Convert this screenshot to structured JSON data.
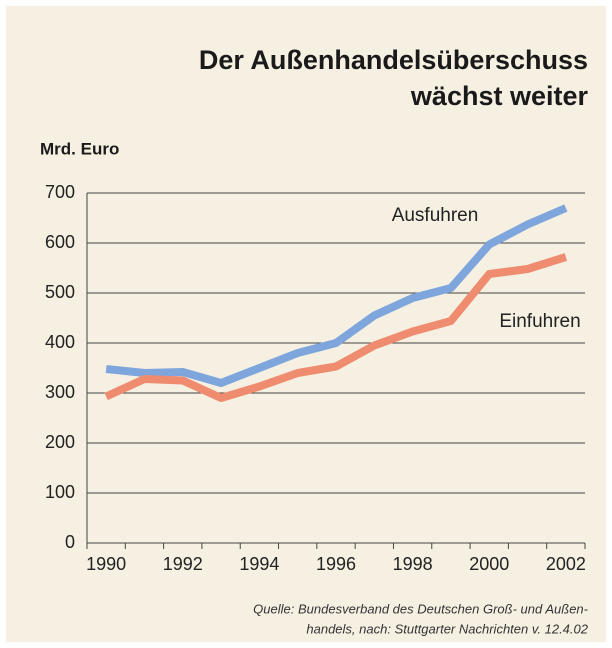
{
  "chart_data": {
    "type": "line",
    "title": [
      "Der Außenhandelsüberschuss",
      "wächst weiter"
    ],
    "y_axis_label": "Mrd. Euro",
    "categories": [
      "1990",
      null,
      "1992",
      null,
      "1994",
      null,
      "1996",
      null,
      "1998",
      null,
      "2000",
      null,
      "2002"
    ],
    "series": [
      {
        "name": "Ausfuhren",
        "color": "#7ea6dc",
        "values": [
          348,
          340,
          342,
          320,
          350,
          380,
          400,
          455,
          490,
          510,
          597,
          637,
          670
        ]
      },
      {
        "name": "Einfuhren",
        "color": "#ef8c6f",
        "values": [
          293,
          328,
          325,
          290,
          313,
          340,
          353,
          395,
          423,
          444,
          538,
          548,
          572
        ]
      }
    ],
    "ylim": [
      0,
      700
    ],
    "yticks": [
      0,
      100,
      200,
      300,
      400,
      500,
      600,
      700
    ],
    "grid": true,
    "source": [
      "Quelle: Bundesverband des Deutschen Groß- und Außen-",
      "handels, nach: Stuttgarter Nachrichten v. 12.4.02"
    ]
  }
}
